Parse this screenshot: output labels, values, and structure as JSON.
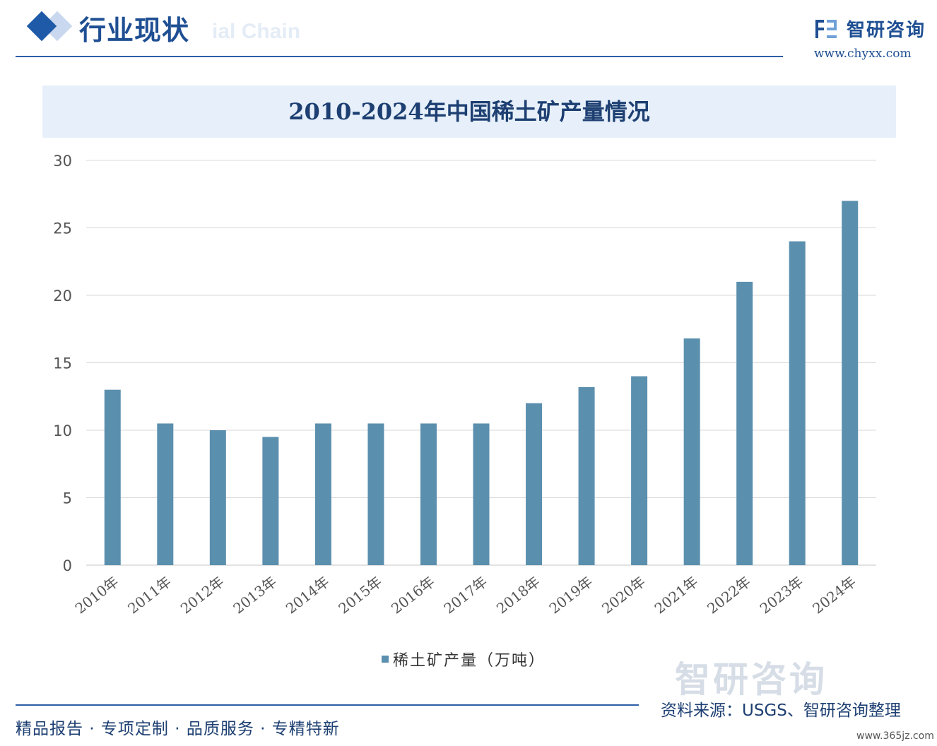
{
  "header": {
    "section_title": "行业现状",
    "ghost_text": "ial Chain",
    "brand_name": "智研咨询",
    "brand_url": "www.chyxx.com"
  },
  "chart_data": {
    "type": "bar",
    "title": "2010-2024年中国稀土矿产量情况",
    "categories": [
      "2010年",
      "2011年",
      "2012年",
      "2013年",
      "2014年",
      "2015年",
      "2016年",
      "2017年",
      "2018年",
      "2019年",
      "2020年",
      "2021年",
      "2022年",
      "2023年",
      "2024年"
    ],
    "series": [
      {
        "name": "稀土矿产量（万吨）",
        "values": [
          13,
          10.5,
          10,
          9.5,
          10.5,
          10.5,
          10.5,
          10.5,
          12,
          13.2,
          14,
          16.8,
          21,
          24,
          27
        ]
      }
    ],
    "ylim": [
      0,
      30
    ],
    "yticks": [
      0,
      5,
      10,
      15,
      20,
      25,
      30
    ],
    "grid": true,
    "legend_position": "bottom",
    "colors": {
      "bar": "#5b8fae",
      "grid": "#d9d9d9",
      "tick": "#555555"
    }
  },
  "watermark": "智研咨询",
  "footer": {
    "tagline": "精品报告 · 专项定制 · 品质服务 · 专精特新",
    "source": "资料来源：USGS、智研咨询整理",
    "site_mark": "www.365jz.com"
  }
}
